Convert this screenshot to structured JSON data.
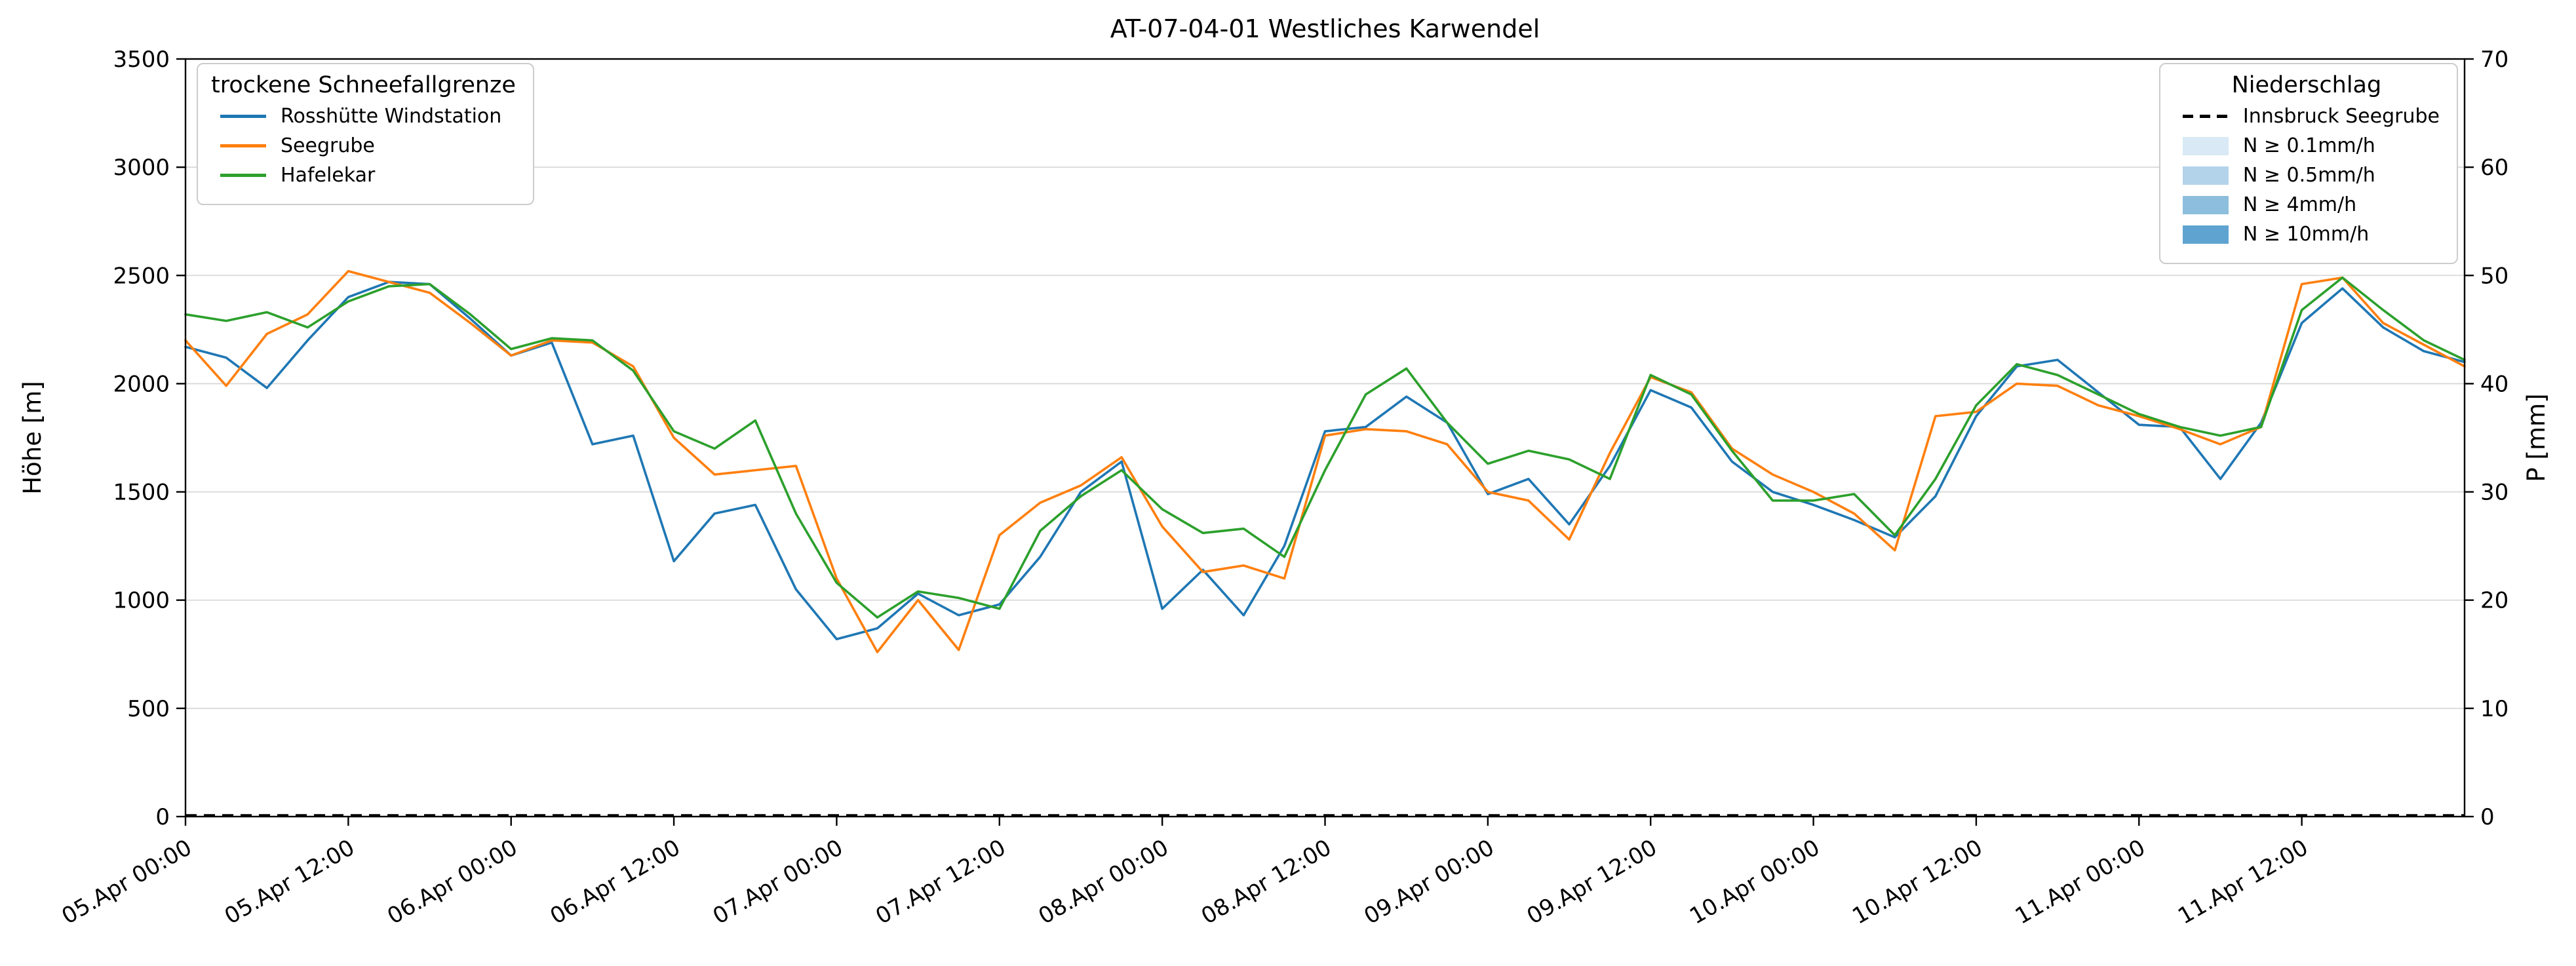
{
  "title": "AT-07-04-01 Westliches Karwendel",
  "chart_data": {
    "type": "line",
    "title": "AT-07-04-01 Westliches Karwendel",
    "grid": "horizontal",
    "y_left": {
      "label": "Höhe [m]",
      "min": 0,
      "max": 3500,
      "tick_step": 500
    },
    "y_right": {
      "label": "P [mm]",
      "min": 0,
      "max": 70,
      "tick_step": 10
    },
    "x_hours_start": 0,
    "x_hours_end": 168,
    "sample_step_hours": 3,
    "x_tick_hours": [
      0,
      12,
      24,
      36,
      48,
      60,
      72,
      84,
      96,
      108,
      120,
      132,
      144,
      156
    ],
    "x_tick_labels": [
      "05.Apr 00:00",
      "05.Apr 12:00",
      "06.Apr 00:00",
      "06.Apr 12:00",
      "07.Apr 00:00",
      "07.Apr 12:00",
      "08.Apr 00:00",
      "08.Apr 12:00",
      "09.Apr 00:00",
      "09.Apr 12:00",
      "10.Apr 00:00",
      "10.Apr 12:00",
      "11.Apr 00:00",
      "11.Apr 12:00"
    ],
    "series": [
      {
        "name": "Rosshütte Windstation",
        "color": "#1f77b4",
        "values": [
          2170,
          2120,
          1980,
          2200,
          2400,
          2470,
          2460,
          2300,
          2130,
          2190,
          1720,
          1760,
          1180,
          1400,
          1440,
          1050,
          820,
          870,
          1030,
          930,
          980,
          1200,
          1500,
          1640,
          960,
          1140,
          930,
          1250,
          1780,
          1800,
          1940,
          1820,
          1490,
          1560,
          1350,
          1620,
          1970,
          1890,
          1640,
          1500,
          1440,
          1370,
          1290,
          1480,
          1850,
          2080,
          2110,
          1960,
          1810,
          1800,
          1560,
          1820,
          2280,
          2440,
          2260,
          2150,
          2100
        ]
      },
      {
        "name": "Seegrube",
        "color": "#ff7f0e",
        "values": [
          2200,
          1990,
          2230,
          2320,
          2520,
          2470,
          2420,
          2280,
          2130,
          2200,
          2190,
          2080,
          1750,
          1580,
          1600,
          1620,
          1100,
          760,
          1000,
          770,
          1300,
          1450,
          1530,
          1660,
          1340,
          1130,
          1160,
          1100,
          1760,
          1790,
          1780,
          1720,
          1500,
          1460,
          1280,
          1680,
          2030,
          1960,
          1700,
          1580,
          1500,
          1400,
          1230,
          1850,
          1870,
          2000,
          1990,
          1900,
          1850,
          1790,
          1720,
          1800,
          2460,
          2490,
          2280,
          2180,
          2080
        ]
      },
      {
        "name": "Hafelekar",
        "color": "#2ca02c",
        "values": [
          2320,
          2290,
          2330,
          2260,
          2380,
          2450,
          2460,
          2320,
          2160,
          2210,
          2200,
          2060,
          1780,
          1700,
          1830,
          1400,
          1080,
          920,
          1040,
          1010,
          960,
          1320,
          1480,
          1600,
          1420,
          1310,
          1330,
          1200,
          1600,
          1950,
          2070,
          1820,
          1630,
          1690,
          1650,
          1560,
          2040,
          1950,
          1690,
          1460,
          1460,
          1490,
          1300,
          1560,
          1900,
          2090,
          2040,
          1950,
          1860,
          1800,
          1760,
          1800,
          2340,
          2490,
          2340,
          2200,
          2110
        ]
      }
    ],
    "precipitation": {
      "name": "Innsbruck Seegrube",
      "line_style": "dashed",
      "color": "#000000",
      "constant_value_mm": 0
    }
  },
  "legend_left": {
    "title": "trockene Schneefallgrenze",
    "items": [
      {
        "label": "Rosshütte Windstation",
        "swatch_type": "line",
        "color": "#1f77b4"
      },
      {
        "label": "Seegrube",
        "swatch_type": "line",
        "color": "#ff7f0e"
      },
      {
        "label": "Hafelekar",
        "swatch_type": "line",
        "color": "#2ca02c"
      }
    ]
  },
  "legend_right": {
    "title": "Niederschlag",
    "items": [
      {
        "label": "Innsbruck Seegrube",
        "swatch_type": "dashed-line",
        "color": "#000000"
      },
      {
        "label": "N ≥ 0.1mm/h",
        "swatch_type": "patch",
        "color": "#d9e9f5"
      },
      {
        "label": "N ≥ 0.5mm/h",
        "swatch_type": "patch",
        "color": "#b3d3ea"
      },
      {
        "label": "N ≥ 4mm/h",
        "swatch_type": "patch",
        "color": "#8ebedd"
      },
      {
        "label": "N ≥ 10mm/h",
        "swatch_type": "patch",
        "color": "#5fa4d0"
      }
    ]
  }
}
